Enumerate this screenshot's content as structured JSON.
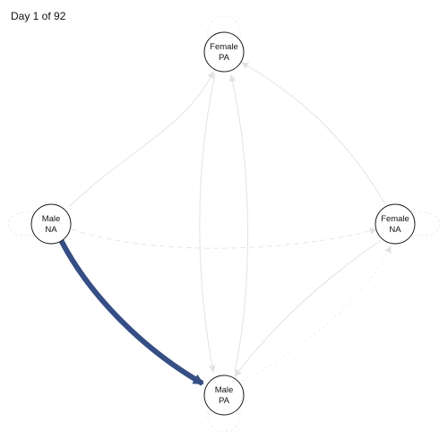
{
  "day_label": "Day 1 of 92",
  "nodes": {
    "female_pa": {
      "line1": "Female",
      "line2": "PA"
    },
    "male_na": {
      "line1": "Male",
      "line2": "NA"
    },
    "female_na": {
      "line1": "Female",
      "line2": "NA"
    },
    "male_pa": {
      "line1": "Male",
      "line2": "PA"
    }
  },
  "colors": {
    "active_edge": "#354e84",
    "faint_edge": "#e3e3e3",
    "node_stroke": "#222222"
  },
  "active_edge": {
    "from": "Male NA",
    "to": "Male PA"
  }
}
